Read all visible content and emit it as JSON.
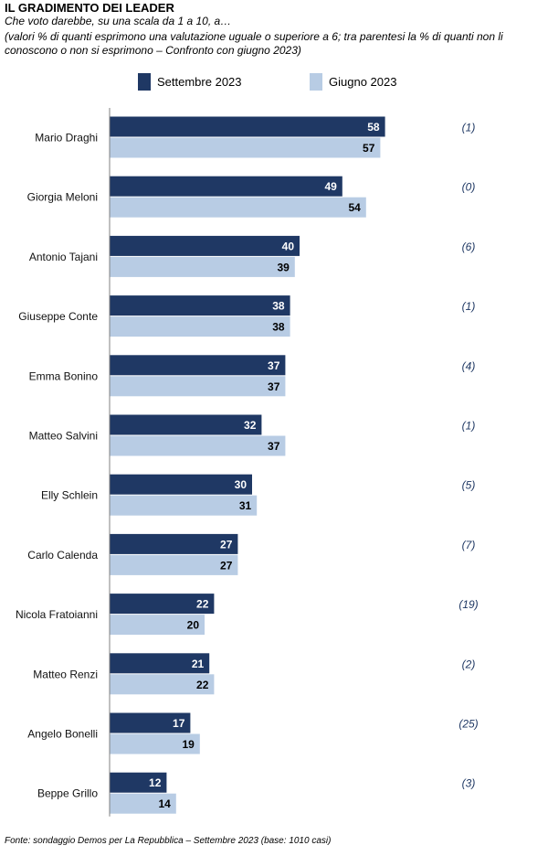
{
  "title": "IL GRADIMENTO DEI LEADER",
  "subtitle": "Che voto darebbe, su una scala da 1 a 10, a…",
  "note": "(valori % di quanti esprimono una valutazione uguale o superiore a 6; tra parentesi la % di quanti non li conoscono o non si esprimono – Confronto con giugno 2023)",
  "source": "Fonte: sondaggio Demos per La Repubblica – Settembre 2023 (base: 1010 casi)",
  "colors": {
    "settembre": "#1f3864",
    "giugno": "#b8cce4"
  },
  "chart_data": {
    "type": "bar",
    "orientation": "horizontal",
    "categories": [
      "Mario Draghi",
      "Giorgia Meloni",
      "Antonio Tajani",
      "Giuseppe Conte",
      "Emma Bonino",
      "Matteo Salvini",
      "Elly Schlein",
      "Carlo Calenda",
      "Nicola Fratoianni",
      "Matteo Renzi",
      "Angelo Bonelli",
      "Beppe Grillo"
    ],
    "series": [
      {
        "name": "Settembre 2023",
        "values": [
          58,
          49,
          40,
          38,
          37,
          32,
          30,
          27,
          22,
          21,
          17,
          12
        ]
      },
      {
        "name": "Giugno 2023",
        "values": [
          57,
          54,
          39,
          38,
          37,
          37,
          31,
          27,
          20,
          22,
          19,
          14
        ]
      }
    ],
    "non_rispondenti": [
      "(1)",
      "(0)",
      "(6)",
      "(1)",
      "(4)",
      "(1)",
      "(5)",
      "(7)",
      "(19)",
      "(2)",
      "(25)",
      "(3)"
    ],
    "legend_position": "top",
    "grid": false
  }
}
